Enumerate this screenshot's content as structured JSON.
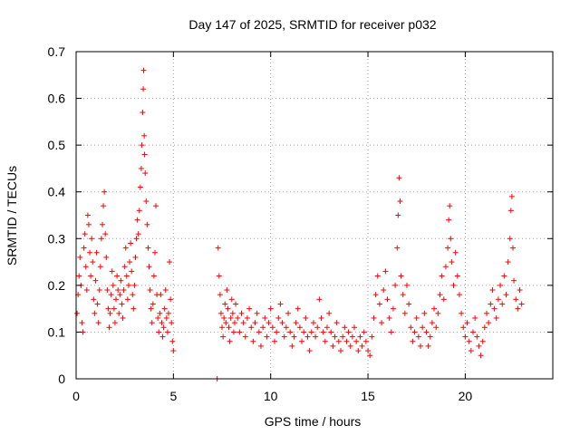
{
  "chart_data": {
    "type": "scatter",
    "title": "Day 147 of 2025, SRMTID for receiver p032",
    "xlabel": "GPS time / hours",
    "ylabel": "SRMTID / TECUs",
    "xlim": [
      0,
      24.5
    ],
    "ylim": [
      0,
      0.7
    ],
    "grid": true,
    "marker": "+",
    "marker_color": "#ff0000",
    "x_ticks": [
      0,
      5,
      10,
      15,
      20
    ],
    "x_tick_labels": [
      "0",
      "5",
      "10",
      "15",
      "20"
    ],
    "y_ticks": [
      0,
      0.1,
      0.2,
      0.3,
      0.4,
      0.5,
      0.6,
      0.7
    ],
    "y_tick_labels": [
      "0",
      "0.1",
      "0.2",
      "0.3",
      "0.4",
      "0.5",
      "0.6",
      "0.7"
    ],
    "series": [
      {
        "name": "p032",
        "points": [
          [
            0.05,
            0.14
          ],
          [
            0.1,
            0.18
          ],
          [
            0.15,
            0.22
          ],
          [
            0.2,
            0.26
          ],
          [
            0.25,
            0.2
          ],
          [
            0.3,
            0.12
          ],
          [
            0.35,
            0.1
          ],
          [
            0.4,
            0.28
          ],
          [
            0.45,
            0.31
          ],
          [
            0.5,
            0.24
          ],
          [
            0.55,
            0.19
          ],
          [
            0.6,
            0.35
          ],
          [
            0.65,
            0.33
          ],
          [
            0.7,
            0.27
          ],
          [
            0.75,
            0.22
          ],
          [
            0.8,
            0.3
          ],
          [
            0.85,
            0.25
          ],
          [
            0.9,
            0.17
          ],
          [
            0.95,
            0.14
          ],
          [
            1.0,
            0.21
          ],
          [
            1.05,
            0.27
          ],
          [
            1.1,
            0.16
          ],
          [
            1.15,
            0.12
          ],
          [
            1.2,
            0.19
          ],
          [
            1.25,
            0.24
          ],
          [
            1.3,
            0.3
          ],
          [
            1.35,
            0.33
          ],
          [
            1.4,
            0.37
          ],
          [
            1.45,
            0.4
          ],
          [
            1.5,
            0.31
          ],
          [
            1.55,
            0.26
          ],
          [
            1.6,
            0.19
          ],
          [
            1.65,
            0.15
          ],
          [
            1.7,
            0.11
          ],
          [
            1.75,
            0.14
          ],
          [
            1.8,
            0.18
          ],
          [
            1.85,
            0.23
          ],
          [
            1.9,
            0.2
          ],
          [
            1.95,
            0.15
          ],
          [
            2.0,
            0.12
          ],
          [
            2.05,
            0.17
          ],
          [
            2.1,
            0.22
          ],
          [
            2.15,
            0.19
          ],
          [
            2.2,
            0.14
          ],
          [
            2.25,
            0.18
          ],
          [
            2.3,
            0.21
          ],
          [
            2.35,
            0.16
          ],
          [
            2.4,
            0.13
          ],
          [
            2.45,
            0.19
          ],
          [
            2.5,
            0.24
          ],
          [
            2.55,
            0.28
          ],
          [
            2.6,
            0.22
          ],
          [
            2.65,
            0.17
          ],
          [
            2.7,
            0.2
          ],
          [
            2.75,
            0.25
          ],
          [
            2.8,
            0.29
          ],
          [
            2.85,
            0.23
          ],
          [
            2.9,
            0.18
          ],
          [
            2.95,
            0.15
          ],
          [
            3.0,
            0.2
          ],
          [
            3.05,
            0.26
          ],
          [
            3.1,
            0.3
          ],
          [
            3.15,
            0.34
          ],
          [
            3.2,
            0.31
          ],
          [
            3.25,
            0.36
          ],
          [
            3.3,
            0.41
          ],
          [
            3.35,
            0.45
          ],
          [
            3.38,
            0.5
          ],
          [
            3.42,
            0.57
          ],
          [
            3.45,
            0.62
          ],
          [
            3.47,
            0.66
          ],
          [
            3.5,
            0.52
          ],
          [
            3.52,
            0.48
          ],
          [
            3.55,
            0.44
          ],
          [
            3.6,
            0.38
          ],
          [
            3.65,
            0.33
          ],
          [
            3.7,
            0.28
          ],
          [
            3.75,
            0.24
          ],
          [
            3.8,
            0.19
          ],
          [
            3.85,
            0.15
          ],
          [
            3.9,
            0.12
          ],
          [
            3.95,
            0.16
          ],
          [
            4.0,
            0.22
          ],
          [
            4.05,
            0.27
          ],
          [
            4.1,
            0.37
          ],
          [
            4.15,
            0.18
          ],
          [
            4.2,
            0.13
          ],
          [
            4.25,
            0.1
          ],
          [
            4.3,
            0.14
          ],
          [
            4.35,
            0.18
          ],
          [
            4.4,
            0.12
          ],
          [
            4.45,
            0.09
          ],
          [
            4.5,
            0.11
          ],
          [
            4.55,
            0.15
          ],
          [
            4.6,
            0.19
          ],
          [
            4.65,
            0.13
          ],
          [
            4.7,
            0.1
          ],
          [
            4.75,
            0.14
          ],
          [
            4.8,
            0.25
          ],
          [
            4.85,
            0.17
          ],
          [
            4.9,
            0.12
          ],
          [
            4.95,
            0.08
          ],
          [
            5.0,
            0.06
          ],
          [
            7.25,
            0.0
          ],
          [
            7.3,
            0.28
          ],
          [
            7.35,
            0.22
          ],
          [
            7.4,
            0.18
          ],
          [
            7.45,
            0.14
          ],
          [
            7.5,
            0.11
          ],
          [
            7.55,
            0.09
          ],
          [
            7.6,
            0.13
          ],
          [
            7.65,
            0.16
          ],
          [
            7.7,
            0.12
          ],
          [
            7.75,
            0.19
          ],
          [
            7.8,
            0.15
          ],
          [
            7.85,
            0.11
          ],
          [
            7.9,
            0.08
          ],
          [
            7.95,
            0.13
          ],
          [
            8.0,
            0.17
          ],
          [
            8.05,
            0.14
          ],
          [
            8.1,
            0.1
          ],
          [
            8.15,
            0.12
          ],
          [
            8.2,
            0.16
          ],
          [
            8.3,
            0.13
          ],
          [
            8.4,
            0.1
          ],
          [
            8.5,
            0.14
          ],
          [
            8.6,
            0.12
          ],
          [
            8.7,
            0.09
          ],
          [
            8.8,
            0.13
          ],
          [
            8.9,
            0.15
          ],
          [
            9.0,
            0.11
          ],
          [
            9.1,
            0.08
          ],
          [
            9.2,
            0.12
          ],
          [
            9.3,
            0.14
          ],
          [
            9.4,
            0.1
          ],
          [
            9.5,
            0.07
          ],
          [
            9.6,
            0.11
          ],
          [
            9.7,
            0.13
          ],
          [
            9.8,
            0.09
          ],
          [
            9.9,
            0.12
          ],
          [
            10.0,
            0.15
          ],
          [
            10.1,
            0.11
          ],
          [
            10.2,
            0.08
          ],
          [
            10.3,
            0.1
          ],
          [
            10.4,
            0.13
          ],
          [
            10.5,
            0.16
          ],
          [
            10.6,
            0.12
          ],
          [
            10.7,
            0.09
          ],
          [
            10.8,
            0.11
          ],
          [
            10.9,
            0.14
          ],
          [
            11.0,
            0.1
          ],
          [
            11.1,
            0.07
          ],
          [
            11.2,
            0.09
          ],
          [
            11.3,
            0.12
          ],
          [
            11.4,
            0.15
          ],
          [
            11.5,
            0.11
          ],
          [
            11.6,
            0.08
          ],
          [
            11.7,
            0.1
          ],
          [
            11.8,
            0.13
          ],
          [
            11.9,
            0.09
          ],
          [
            12.0,
            0.06
          ],
          [
            12.1,
            0.1
          ],
          [
            12.2,
            0.12
          ],
          [
            12.3,
            0.09
          ],
          [
            12.4,
            0.11
          ],
          [
            12.5,
            0.17
          ],
          [
            12.6,
            0.13
          ],
          [
            12.7,
            0.1
          ],
          [
            12.8,
            0.08
          ],
          [
            12.9,
            0.11
          ],
          [
            13.0,
            0.14
          ],
          [
            13.1,
            0.1
          ],
          [
            13.2,
            0.07
          ],
          [
            13.3,
            0.09
          ],
          [
            13.4,
            0.12
          ],
          [
            13.5,
            0.08
          ],
          [
            13.6,
            0.06
          ],
          [
            13.7,
            0.09
          ],
          [
            13.8,
            0.11
          ],
          [
            13.9,
            0.08
          ],
          [
            14.0,
            0.1
          ],
          [
            14.1,
            0.07
          ],
          [
            14.2,
            0.09
          ],
          [
            14.3,
            0.11
          ],
          [
            14.4,
            0.08
          ],
          [
            14.5,
            0.06
          ],
          [
            14.6,
            0.09
          ],
          [
            14.7,
            0.07
          ],
          [
            14.8,
            0.1
          ],
          [
            14.9,
            0.08
          ],
          [
            15.0,
            0.06
          ],
          [
            15.1,
            0.05
          ],
          [
            15.2,
            0.09
          ],
          [
            15.3,
            0.13
          ],
          [
            15.4,
            0.18
          ],
          [
            15.5,
            0.22
          ],
          [
            15.6,
            0.16
          ],
          [
            15.7,
            0.12
          ],
          [
            15.8,
            0.19
          ],
          [
            15.9,
            0.23
          ],
          [
            16.0,
            0.17
          ],
          [
            16.1,
            0.13
          ],
          [
            16.2,
            0.1
          ],
          [
            16.3,
            0.15
          ],
          [
            16.4,
            0.2
          ],
          [
            16.5,
            0.28
          ],
          [
            16.55,
            0.35
          ],
          [
            16.6,
            0.43
          ],
          [
            16.65,
            0.38
          ],
          [
            16.7,
            0.22
          ],
          [
            16.8,
            0.18
          ],
          [
            16.9,
            0.14
          ],
          [
            17.0,
            0.2
          ],
          [
            17.1,
            0.16
          ],
          [
            17.2,
            0.11
          ],
          [
            17.3,
            0.08
          ],
          [
            17.4,
            0.1
          ],
          [
            17.5,
            0.13
          ],
          [
            17.6,
            0.09
          ],
          [
            17.7,
            0.07
          ],
          [
            17.8,
            0.11
          ],
          [
            17.9,
            0.14
          ],
          [
            18.0,
            0.1
          ],
          [
            18.1,
            0.07
          ],
          [
            18.2,
            0.09
          ],
          [
            18.3,
            0.12
          ],
          [
            18.4,
            0.15
          ],
          [
            18.5,
            0.11
          ],
          [
            18.6,
            0.14
          ],
          [
            18.7,
            0.18
          ],
          [
            18.8,
            0.22
          ],
          [
            18.9,
            0.17
          ],
          [
            19.0,
            0.24
          ],
          [
            19.1,
            0.28
          ],
          [
            19.15,
            0.34
          ],
          [
            19.2,
            0.37
          ],
          [
            19.25,
            0.3
          ],
          [
            19.3,
            0.25
          ],
          [
            19.4,
            0.2
          ],
          [
            19.5,
            0.27
          ],
          [
            19.6,
            0.22
          ],
          [
            19.7,
            0.18
          ],
          [
            19.8,
            0.14
          ],
          [
            19.9,
            0.11
          ],
          [
            20.0,
            0.09
          ],
          [
            20.1,
            0.12
          ],
          [
            20.2,
            0.08
          ],
          [
            20.3,
            0.06
          ],
          [
            20.4,
            0.1
          ],
          [
            20.5,
            0.13
          ],
          [
            20.6,
            0.09
          ],
          [
            20.7,
            0.07
          ],
          [
            20.8,
            0.05
          ],
          [
            20.9,
            0.08
          ],
          [
            21.0,
            0.11
          ],
          [
            21.1,
            0.14
          ],
          [
            21.2,
            0.12
          ],
          [
            21.3,
            0.16
          ],
          [
            21.4,
            0.19
          ],
          [
            21.5,
            0.15
          ],
          [
            21.6,
            0.13
          ],
          [
            21.7,
            0.17
          ],
          [
            21.8,
            0.2
          ],
          [
            21.9,
            0.16
          ],
          [
            22.0,
            0.22
          ],
          [
            22.1,
            0.18
          ],
          [
            22.2,
            0.25
          ],
          [
            22.3,
            0.3
          ],
          [
            22.35,
            0.36
          ],
          [
            22.4,
            0.39
          ],
          [
            22.45,
            0.28
          ],
          [
            22.5,
            0.21
          ],
          [
            22.6,
            0.17
          ],
          [
            22.7,
            0.15
          ],
          [
            22.8,
            0.19
          ],
          [
            22.9,
            0.16
          ]
        ]
      }
    ]
  }
}
